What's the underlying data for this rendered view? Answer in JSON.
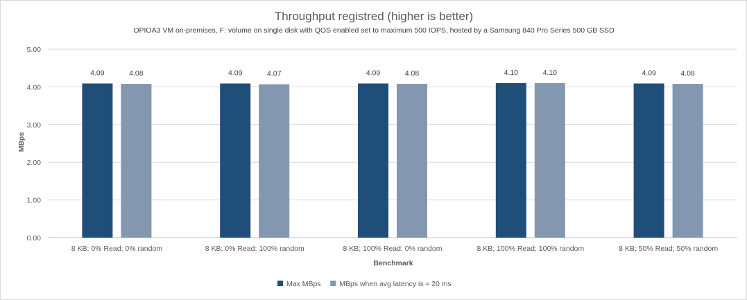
{
  "chart_data": {
    "type": "bar",
    "title": "Throughput registred (higher is better)",
    "subtitle": "OPIOA3 VM on-premises, F: volume on single disk with QOS enabled set to maximum 500 IOPS, hosted by a Samsung 840 Pro Series 500 GB SSD",
    "xlabel": "Benchmark",
    "ylabel": "MBps",
    "ylim": [
      0,
      5
    ],
    "yticks": [
      "0.00",
      "1.00",
      "2.00",
      "3.00",
      "4.00",
      "5.00"
    ],
    "grid": true,
    "legend_position": "bottom",
    "categories": [
      "8 KB; 0% Read; 0% random",
      "8 KB; 0% Read; 100% random",
      "8 KB; 100% Read; 0% random",
      "8 KB; 100% Read; 100% random",
      "8 KB; 50% Read; 50% random"
    ],
    "series": [
      {
        "name": "Max MBps",
        "color": "#1f4e79",
        "values": [
          4.09,
          4.09,
          4.09,
          4.1,
          4.09
        ],
        "labels": [
          "4.09",
          "4.09",
          "4.09",
          "4.10",
          "4.09"
        ]
      },
      {
        "name": "MBps when avg latency is ≈ 20 ms",
        "color": "#8497b0",
        "values": [
          4.08,
          4.07,
          4.08,
          4.1,
          4.08
        ],
        "labels": [
          "4.08",
          "4.07",
          "4.08",
          "4.10",
          "4.08"
        ]
      }
    ]
  }
}
